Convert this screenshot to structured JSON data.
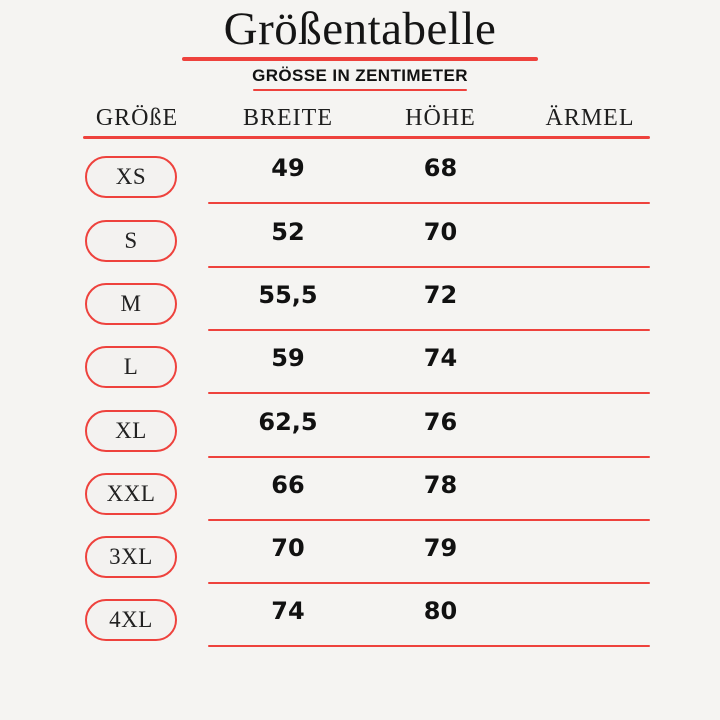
{
  "page": {
    "background_color": "#f5f4f2",
    "accent_color": "#ee423d",
    "text_color": "#111111"
  },
  "title": "Größentabelle",
  "subtitle": "GRÖSSE IN ZENTIMETER",
  "table": {
    "headers": [
      "GRÖßE",
      "BREITE",
      "HÖHE",
      "ÄRMEL"
    ],
    "rows": [
      {
        "size": "XS",
        "breite": "49",
        "hoehe": "68",
        "aermel": ""
      },
      {
        "size": "S",
        "breite": "52",
        "hoehe": "70",
        "aermel": ""
      },
      {
        "size": "M",
        "breite": "55,5",
        "hoehe": "72",
        "aermel": ""
      },
      {
        "size": "L",
        "breite": "59",
        "hoehe": "74",
        "aermel": ""
      },
      {
        "size": "XL",
        "breite": "62,5",
        "hoehe": "76",
        "aermel": ""
      },
      {
        "size": "XXL",
        "breite": "66",
        "hoehe": "78",
        "aermel": ""
      },
      {
        "size": "3XL",
        "breite": "70",
        "hoehe": "79",
        "aermel": ""
      },
      {
        "size": "4XL",
        "breite": "74",
        "hoehe": "80",
        "aermel": ""
      }
    ]
  },
  "chart_data": {
    "type": "table",
    "title": "Größentabelle",
    "subtitle": "GRÖSSE IN ZENTIMETER",
    "unit": "cm",
    "columns": [
      "GRÖßE",
      "BREITE",
      "HÖHE",
      "ÄRMEL"
    ],
    "rows": [
      [
        "XS",
        "49",
        "68",
        ""
      ],
      [
        "S",
        "52",
        "70",
        ""
      ],
      [
        "M",
        "55,5",
        "72",
        ""
      ],
      [
        "L",
        "59",
        "74",
        ""
      ],
      [
        "XL",
        "62,5",
        "76",
        ""
      ],
      [
        "XXL",
        "66",
        "78",
        ""
      ],
      [
        "3XL",
        "70",
        "79",
        ""
      ],
      [
        "4XL",
        "74",
        "80",
        ""
      ]
    ]
  }
}
